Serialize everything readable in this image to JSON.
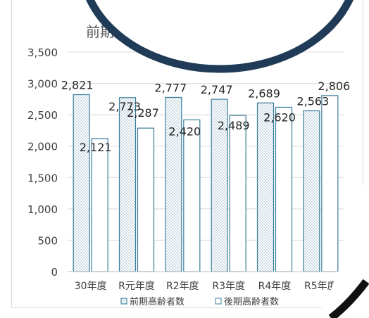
{
  "chart_data": {
    "type": "bar",
    "title": "前期",
    "categories": [
      "30年度",
      "R元年度",
      "R2年度",
      "R3年度",
      "R4年度",
      "R5年度"
    ],
    "series": [
      {
        "name": "前期高齢者数",
        "values": [
          2821,
          2773,
          2777,
          2747,
          2689,
          2563
        ],
        "pattern": "dots",
        "stroke": "#3a7d9c"
      },
      {
        "name": "後期高齢者数",
        "values": [
          2121,
          2287,
          2420,
          2489,
          2620,
          2806
        ],
        "pattern": "none",
        "stroke": "#3a7d9c"
      }
    ],
    "data_labels": [
      [
        "2,821",
        "2,773",
        "2,777",
        "2,747",
        "2,689",
        "2,563"
      ],
      [
        "2,121",
        "2,287",
        "2,420",
        "2,489",
        "2,620",
        "2,806"
      ]
    ],
    "yticks": [
      "0",
      "500",
      "1,000",
      "1,500",
      "2,000",
      "2,500",
      "3,000",
      "3,500"
    ],
    "ylim": [
      0,
      3500
    ],
    "grid": true,
    "legend_position": "bottom"
  },
  "colors": {
    "bar_border": "#3a7d9c",
    "dot": "#7fa9bd",
    "axis_text": "#404040",
    "gridline": "#d9d9d9",
    "lens_ring": "#1f3b57"
  }
}
